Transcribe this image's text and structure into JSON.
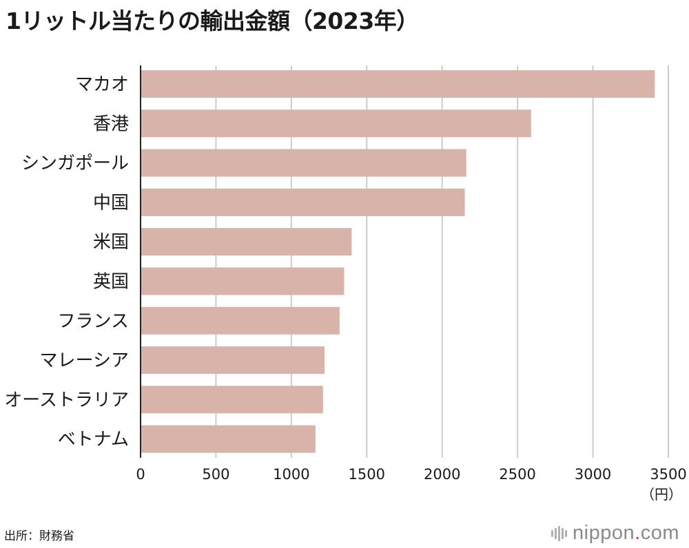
{
  "title": "1リットル当たりの輸出金額（2023年）",
  "source": "出所：財務省",
  "brand": {
    "name": "nippon",
    "dot": ".",
    "suffix": "com",
    "icon": "nippon-logo-icon"
  },
  "colors": {
    "bar": "#d8b3aa",
    "grid": "#cccccc",
    "axis": "#222222",
    "text": "#1a1a1a"
  },
  "chart_data": {
    "type": "bar",
    "orientation": "horizontal",
    "categories": [
      "マカオ",
      "香港",
      "シンガポール",
      "中国",
      "米国",
      "英国",
      "フランス",
      "マレーシア",
      "オーストラリア",
      "ベトナム"
    ],
    "values": [
      3410,
      2590,
      2160,
      2150,
      1400,
      1350,
      1320,
      1220,
      1210,
      1160
    ],
    "xlim": [
      0,
      3500
    ],
    "xticks": [
      0,
      500,
      1000,
      1500,
      2000,
      2500,
      3000,
      3500
    ],
    "unit": "（円）",
    "grid": true
  }
}
